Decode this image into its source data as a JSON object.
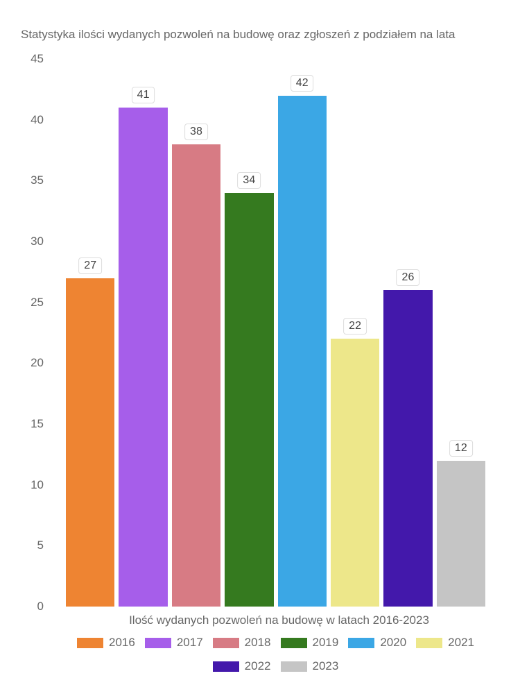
{
  "chart": {
    "type": "bar",
    "title": "Statystyka ilości wydanych pozwoleń na budowę oraz zgłoszeń z podziałem na lata",
    "xlabel": "Ilość wydanych pozwoleń na budowę w latach 2016-2023",
    "background_color": "#ffffff",
    "text_color": "#666666",
    "title_fontsize": 17,
    "label_fontsize": 17,
    "tick_fontsize": 17,
    "ylim": [
      0,
      45
    ],
    "ytick_step": 5,
    "yticks": [
      0,
      5,
      10,
      15,
      20,
      25,
      30,
      35,
      40,
      45
    ],
    "bar_gap": 6,
    "series": [
      {
        "year": "2016",
        "value": 27,
        "color": "#ee8432"
      },
      {
        "year": "2017",
        "value": 41,
        "color": "#a65eea"
      },
      {
        "year": "2018",
        "value": 38,
        "color": "#d77b84"
      },
      {
        "year": "2019",
        "value": 34,
        "color": "#357a1f"
      },
      {
        "year": "2020",
        "value": 42,
        "color": "#3ba7e5"
      },
      {
        "year": "2021",
        "value": 22,
        "color": "#ede78a"
      },
      {
        "year": "2022",
        "value": 26,
        "color": "#4318ab"
      },
      {
        "year": "2023",
        "value": 12,
        "color": "#c5c5c5"
      }
    ],
    "value_label_bg": "#ffffff",
    "value_label_border": "#dddddd",
    "value_label_fontsize": 16
  }
}
